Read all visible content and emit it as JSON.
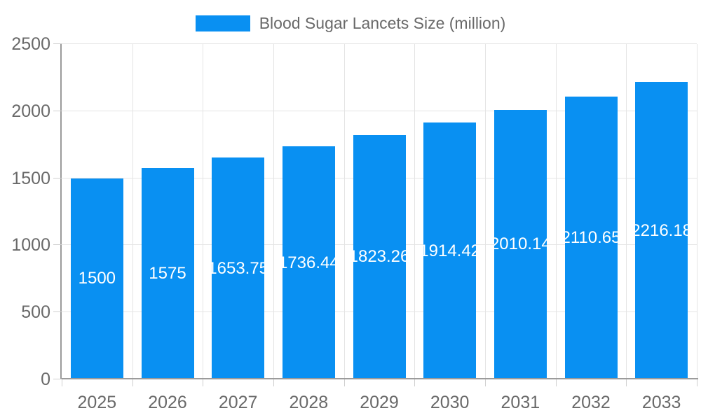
{
  "legend": {
    "label": "Blood Sugar Lancets Size (million)"
  },
  "chart_data": {
    "type": "bar",
    "title": "Blood Sugar Lancets Size (million)",
    "categories": [
      "2025",
      "2026",
      "2027",
      "2028",
      "2029",
      "2030",
      "2031",
      "2032",
      "2033"
    ],
    "series": [
      {
        "name": "Blood Sugar Lancets Size (million)",
        "values": [
          1500,
          1575,
          1653.75,
          1736.44,
          1823.26,
          1914.42,
          2010.14,
          2110.65,
          2216.18
        ],
        "labels": [
          "1500",
          "1575",
          "1653.75",
          "1736.44",
          "1823.26",
          "1914.42",
          "2010.14",
          "2110.65",
          "2216.18"
        ]
      }
    ],
    "xlabel": "",
    "ylabel": "",
    "ylim": [
      0,
      2500
    ],
    "yticks": [
      0,
      500,
      1000,
      1500,
      2000,
      2500
    ],
    "grid": true,
    "legend_position": "top",
    "colors": {
      "bar": "#0990f2",
      "grid": "#e4e4e4",
      "axis": "#9b9b9b",
      "tick": "#cfcfcf",
      "text": "#696969",
      "bar_label": "#ffffff",
      "background": "#ffffff"
    }
  }
}
